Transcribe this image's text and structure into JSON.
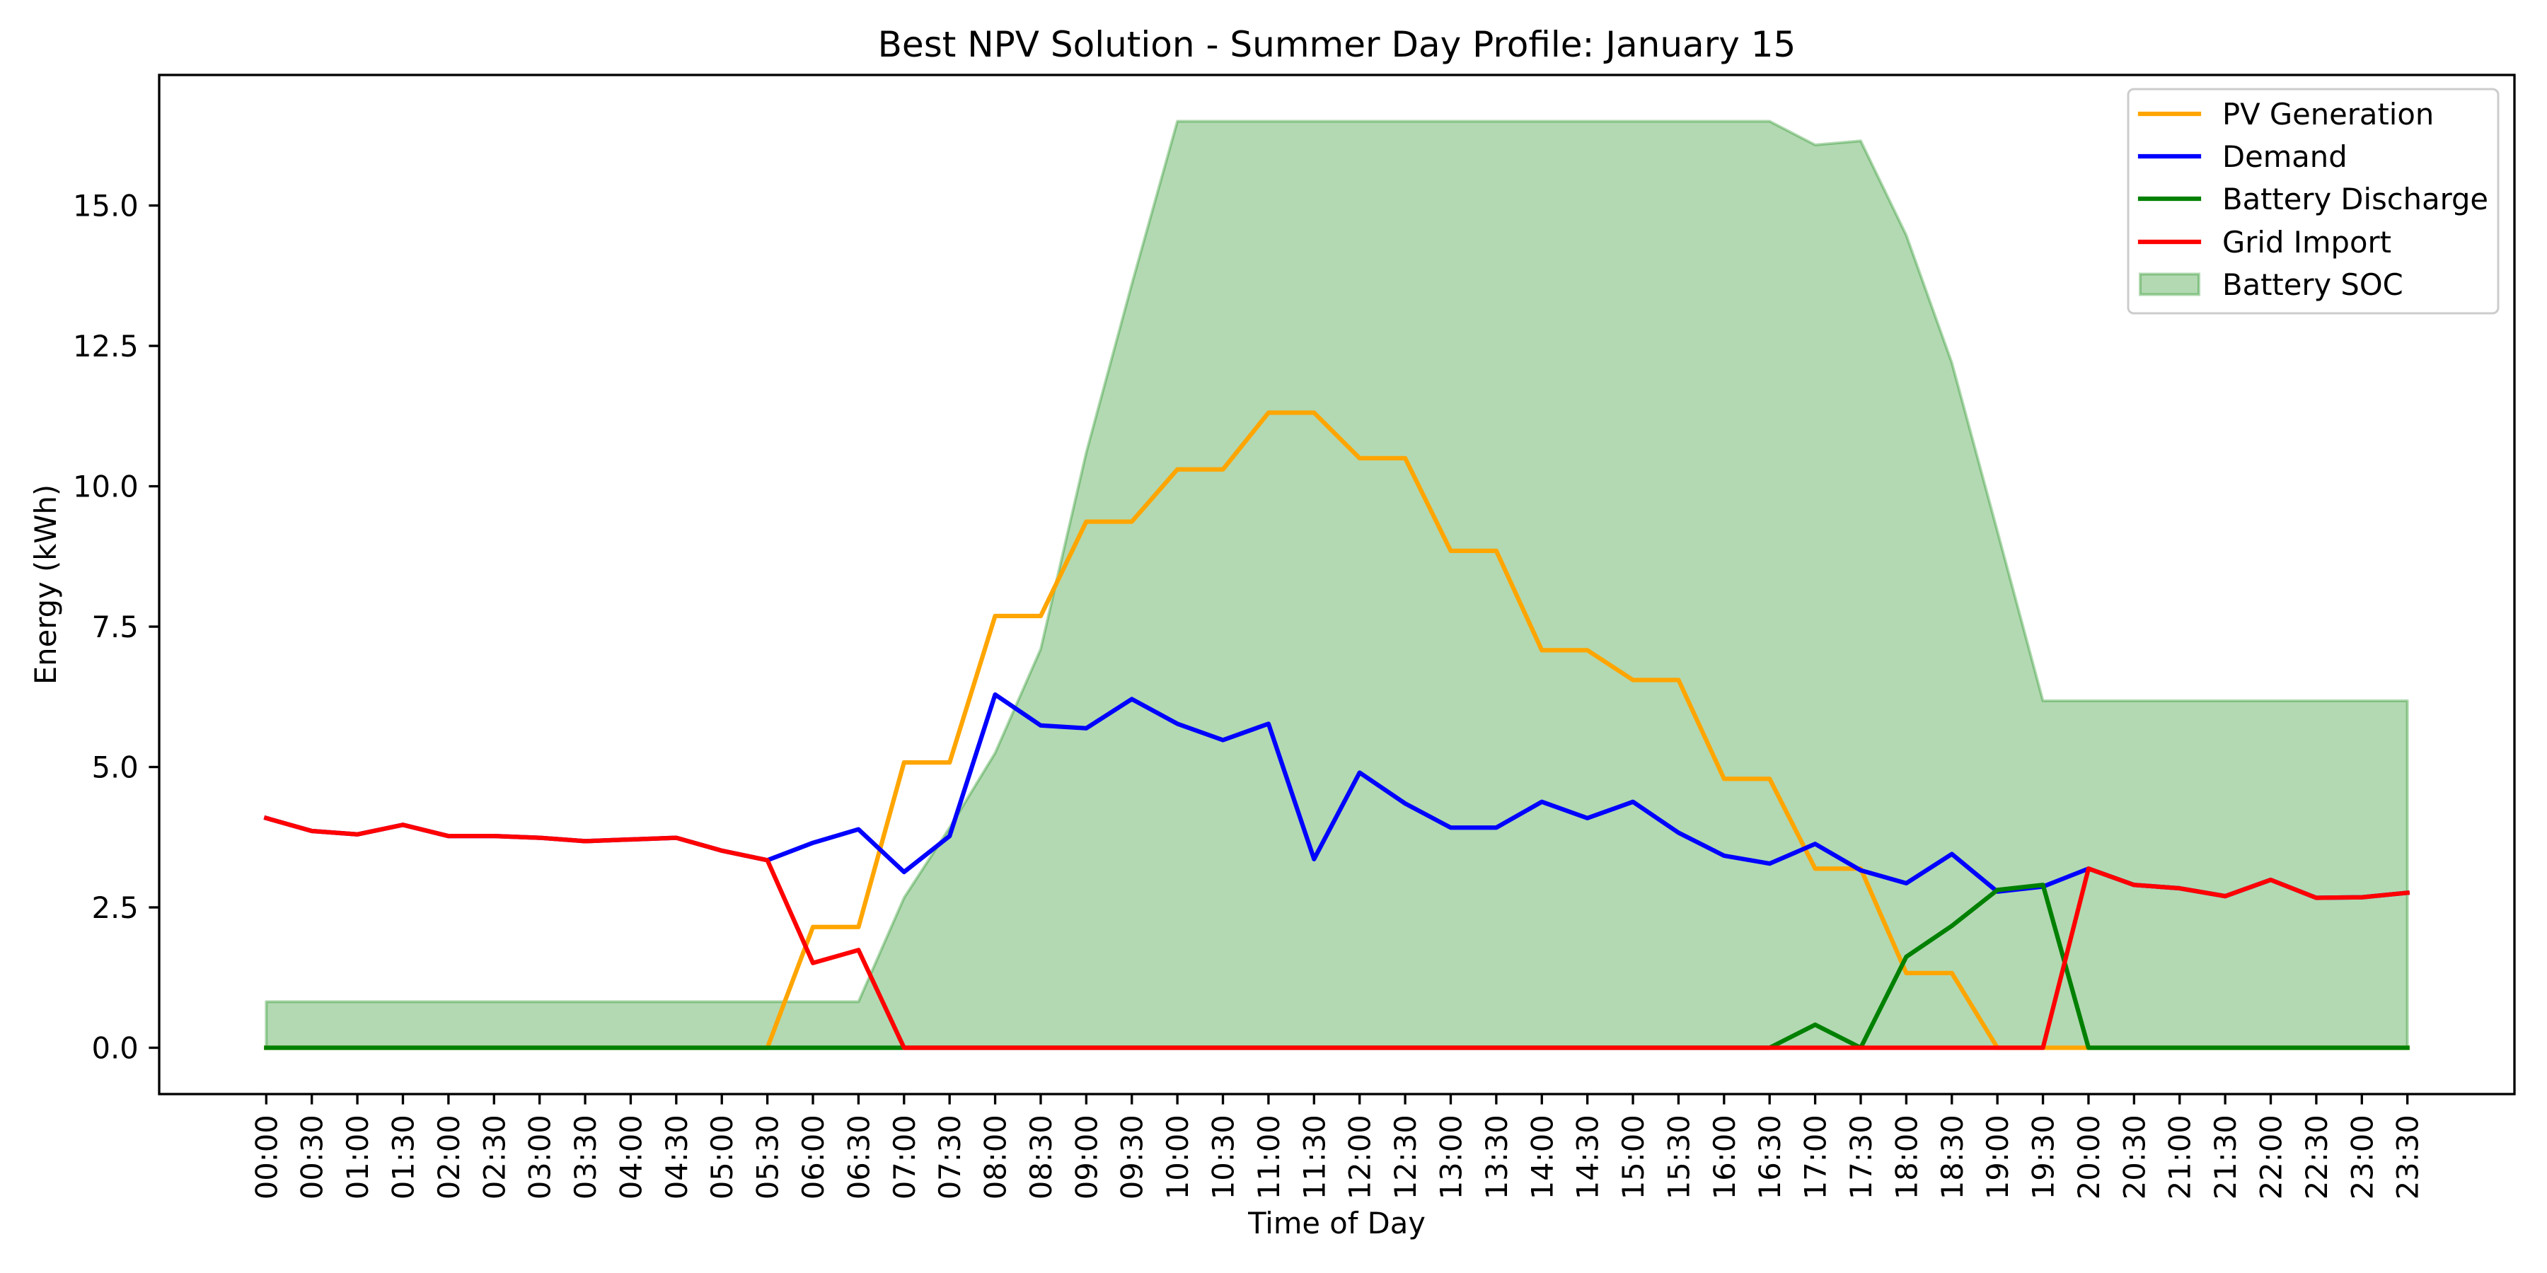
{
  "chart_data": {
    "type": "line",
    "title": "Best NPV Solution - Summer Day Profile: January 15",
    "xlabel": "Time of Day",
    "ylabel": "Energy (kWh)",
    "categories": [
      "00:00",
      "00:30",
      "01:00",
      "01:30",
      "02:00",
      "02:30",
      "03:00",
      "03:30",
      "04:00",
      "04:30",
      "05:00",
      "05:30",
      "06:00",
      "06:30",
      "07:00",
      "07:30",
      "08:00",
      "08:30",
      "09:00",
      "09:30",
      "10:00",
      "10:30",
      "11:00",
      "11:30",
      "12:00",
      "12:30",
      "13:00",
      "13:30",
      "14:00",
      "14:30",
      "15:00",
      "15:30",
      "16:00",
      "16:30",
      "17:00",
      "17:30",
      "18:00",
      "18:30",
      "19:00",
      "19:30",
      "20:00",
      "20:30",
      "21:00",
      "21:30",
      "22:00",
      "22:30",
      "23:00",
      "23:30"
    ],
    "ylim": [
      -0.825,
      17.325
    ],
    "yticks": [
      0,
      2.5,
      5,
      7.5,
      10,
      12.5,
      15
    ],
    "ytick_labels": [
      "0.0",
      "2.5",
      "5.0",
      "7.5",
      "10.0",
      "12.5",
      "15.0"
    ],
    "grid": false,
    "legend_position": "upper right",
    "series": [
      {
        "name": "PV Generation",
        "type": "line",
        "color": "#FFA500",
        "values": [
          0,
          0,
          0,
          0,
          0,
          0,
          0,
          0,
          0,
          0,
          0,
          0,
          2.15,
          2.15,
          5.08,
          5.08,
          7.69,
          7.69,
          9.37,
          9.37,
          10.3,
          10.3,
          11.31,
          11.31,
          10.5,
          10.5,
          8.85,
          8.85,
          7.08,
          7.08,
          6.55,
          6.55,
          4.79,
          4.79,
          3.19,
          3.19,
          1.33,
          1.33,
          0,
          0,
          0,
          0,
          0,
          0,
          0,
          0,
          0,
          0
        ]
      },
      {
        "name": "Demand",
        "type": "line",
        "color": "#0000FF",
        "values": [
          4.09,
          3.86,
          3.8,
          3.97,
          3.77,
          3.77,
          3.74,
          3.68,
          3.71,
          3.74,
          3.51,
          3.34,
          3.65,
          3.89,
          3.13,
          3.77,
          6.29,
          5.74,
          5.69,
          6.21,
          5.77,
          5.48,
          5.77,
          3.36,
          4.9,
          4.35,
          3.92,
          3.92,
          4.38,
          4.09,
          4.38,
          3.83,
          3.42,
          3.28,
          3.63,
          3.16,
          2.93,
          3.45,
          2.78,
          2.87,
          3.19,
          2.9,
          2.84,
          2.7,
          2.99,
          2.67,
          2.68,
          2.76
        ]
      },
      {
        "name": "Battery Discharge",
        "type": "line",
        "color": "#008000",
        "values": [
          0,
          0,
          0,
          0,
          0,
          0,
          0,
          0,
          0,
          0,
          0,
          0,
          0,
          0,
          0,
          0,
          0,
          0,
          0,
          0,
          0,
          0,
          0,
          0,
          0,
          0,
          0,
          0,
          0,
          0,
          0,
          0,
          0,
          0,
          0.41,
          0,
          1.62,
          2.17,
          2.81,
          2.9,
          0,
          0,
          0,
          0,
          0,
          0,
          0,
          0
        ]
      },
      {
        "name": "Grid Import",
        "type": "line",
        "color": "#FF0000",
        "values": [
          4.09,
          3.86,
          3.8,
          3.97,
          3.77,
          3.77,
          3.74,
          3.68,
          3.71,
          3.74,
          3.51,
          3.34,
          1.51,
          1.74,
          0,
          0,
          0,
          0,
          0,
          0,
          0,
          0,
          0,
          0,
          0,
          0,
          0,
          0,
          0,
          0,
          0,
          0,
          0,
          0,
          0,
          0,
          0,
          0,
          0,
          0,
          3.19,
          2.9,
          2.84,
          2.7,
          2.99,
          2.67,
          2.68,
          2.76
        ]
      },
      {
        "name": "Battery SOC",
        "type": "area",
        "color": "#0080004D",
        "values": [
          0.82,
          0.82,
          0.82,
          0.82,
          0.82,
          0.82,
          0.82,
          0.82,
          0.82,
          0.82,
          0.82,
          0.82,
          0.82,
          0.82,
          2.67,
          3.92,
          5.25,
          7.1,
          10.6,
          13.6,
          16.5,
          16.5,
          16.5,
          16.5,
          16.5,
          16.5,
          16.5,
          16.5,
          16.5,
          16.5,
          16.5,
          16.5,
          16.5,
          16.5,
          16.08,
          16.15,
          14.47,
          12.2,
          9.2,
          6.18,
          6.18,
          6.18,
          6.18,
          6.18,
          6.18,
          6.18,
          6.18,
          6.18
        ]
      }
    ]
  }
}
